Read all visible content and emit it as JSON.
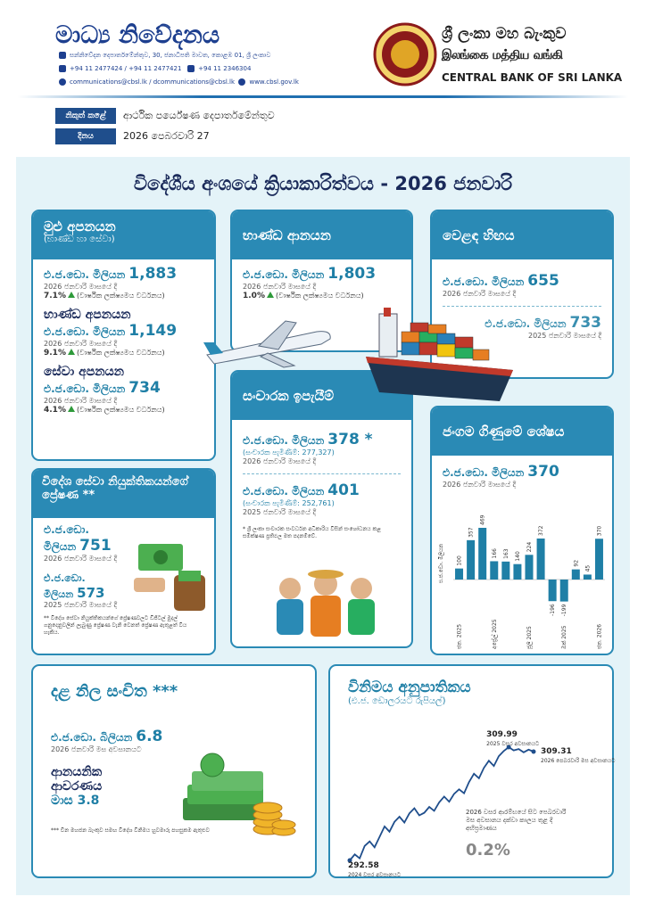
{
  "header": {
    "title": "මාධ්‍ය නිවේදනය",
    "address": "සන්නිවේදන දෙපාර්තමේන්තුව, 30, ජනාධිපති මාවත, කොළඹ 01, ශ්‍රී ලංකාව",
    "phone": "+94 11 2477424 / +94 11 2477421",
    "fax": "+94 11 2346304",
    "email": "communications@cbsl.lk / dcommunications@cbsl.lk",
    "web": "www.cbsl.gov.lk",
    "bank_name_si": "ශ්‍රී ලංකා මහ බැංකුව",
    "bank_name_ta": "இலங்கை மத்திய வங்கி",
    "bank_name_en": "CENTRAL BANK OF SRI LANKA"
  },
  "info": {
    "rows": [
      [
        "නිකුත් කළේ",
        "ආර්ථික පර්යේෂණ දෙපාර්තමේන්තුව"
      ],
      [
        "දිනය",
        "2026 පෙබරවාරි 27"
      ]
    ]
  },
  "title": "විදේශීය අංශයේ ක්‍රියාකාරිත්වය - 2026 ජනවාරි",
  "exports": {
    "heading": "මුළු අපනයන",
    "subheading": "(භාණ්ඩ හා සේවා)",
    "items": [
      {
        "unit": "එ.ජ.ඩො. මිලියන",
        "value": "1,883",
        "period": "2026 ජනවාරි මාසයේ දී",
        "growth": "7.1%",
        "growth_note": "(වාර්ෂික ලක්ෂ්‍යමය වර්ධනය)"
      },
      {
        "heading": "භාණ්ඩ අපනයන",
        "unit": "එ.ජ.ඩො. මිලියන",
        "value": "1,149",
        "period": "2026 ජනවාරි මාසයේ දී",
        "growth": "9.1%",
        "growth_note": "(වාර්ෂික ලක්ෂ්‍යමය වර්ධනය)"
      },
      {
        "heading": "සේවා අපනයන",
        "unit": "එ.ජ.ඩො. මිලියන",
        "value": "734",
        "period": "2026 ජනවාරි මාසයේ දී",
        "growth": "4.1%",
        "growth_note": "(වාර්ෂික ලක්ෂ්‍යමය වර්ධනය)"
      }
    ]
  },
  "imports": {
    "heading": "භාණ්ඩ ආනයන",
    "unit": "එ.ජ.ඩො. මිලියන",
    "value": "1,803",
    "period": "2026 ජනවාරි මාසයේ දී",
    "growth": "1.0%",
    "growth_note": "(වාර්ෂික ලක්ෂ්‍යමය වර්ධනය)"
  },
  "trade_deficit": {
    "heading": "වෙළඳ හිඟය",
    "items": [
      {
        "unit": "එ.ජ.ඩො. මිලියන",
        "value": "655",
        "period": "2026 ජනවාරි මාසයේ දී"
      },
      {
        "unit": "එ.ජ.ඩො. මිලියන",
        "value": "733",
        "period": "2025 ජනවාරි මාසයේ දී"
      }
    ]
  },
  "tourism": {
    "heading": "සංචාරක ඉපැයීම්",
    "items": [
      {
        "unit": "එ.ජ.ඩො. මිලියන",
        "value": "378 *",
        "arrivals": "(සංචාරක පැමිණීම්: 277,327)",
        "period": "2026 ජනවාරි මාසයේ දී"
      },
      {
        "unit": "එ.ජ.ඩො. මිලියන",
        "value": "401",
        "arrivals": "(සංචාරක පැමිණීම්: 252,761)",
        "period": "2025 ජනවාරි මාසයේ දී"
      }
    ],
    "footnote": "* ශ්‍රී ලංකා සංචාරක සංවර්ධන අධිකාරිය විසින් සංශෝධනය කළ සමීක්ෂණ ප්‍රතිඵල මත පදනම්වේ."
  },
  "remittances": {
    "heading": "විදේශ සේවා නියුක්තිකයන්ගේ ප්‍රේෂණ **",
    "items": [
      {
        "unit": "එ.ජ.ඩො. මිලියන",
        "value": "751",
        "period": "2026 ජනවාරි මාසයේ දී"
      },
      {
        "unit": "එ.ජ.ඩො. මිලියන",
        "value": "573",
        "period": "2025 ජනවාරි මාසයේ දී"
      }
    ],
    "footnote": "** විදේශ සේවා නියුක්තිකයන්ගේ ප්‍රේෂණවලට ඩිජිටල් මුදල් ගනුදෙනුවලින් ලැබුණු ප්‍රේෂණ වැනි වෙනත් ප්‍රේෂණ ඇතුළත් විය හැකිය."
  },
  "current_account": {
    "heading": "ජංගම ගිණුමේ ශේෂය",
    "unit": "එ.ජ.ඩො. මිලියන",
    "value": "370",
    "period": "2026 ජනවාරි මාසයේ දී",
    "chart": {
      "type": "bar",
      "y_label": "එ.ජ.ඩො. මිලියන",
      "color": "#1f7fa6",
      "categories": [
        "ජන. 2025",
        null,
        null,
        "අප්‍රේල් 2025",
        null,
        null,
        "ජූලි 2025",
        null,
        null,
        "ඔක් 2025",
        null,
        null,
        "ජන. 2026"
      ],
      "values": [
        100,
        357,
        469,
        166,
        163,
        140,
        224,
        372,
        -196,
        -199,
        92,
        45,
        370
      ]
    }
  },
  "reserves": {
    "heading": "දළ නිල සංචිත ***",
    "unit": "එ.ජ.ඩො. බිලියන",
    "value": "6.8",
    "period": "2026 ජනවාරි මස අවසානයට",
    "cover_heading": "ආනයනික ආවරණය",
    "cover_value": "මාස 3.8",
    "footnote": "*** චීන මහජන බැංකුව සමඟ විදේශ විනිමය හුවමාරු පහසුකම ඇතුළුව"
  },
  "exchange_rate": {
    "heading": "විනිමය අනුපාතිකය",
    "subheading": "(එ.ජ. ඩොලරයට රුපියල්)",
    "note": "2026 වසර ආරම්භයේ සිට පෙබරවාරි මස අවසානය දක්වා කාලය තුළ දී අභිප්‍රමාණය",
    "appreciation": "0.2%",
    "chart": {
      "type": "line",
      "color": "#1f4e8c",
      "values": [
        292.58,
        293.5,
        292.9,
        294.8,
        295.5,
        294.6,
        296.2,
        297.8,
        297.0,
        298.5,
        299.3,
        298.4,
        299.8,
        300.6,
        299.5,
        299.9,
        300.8,
        300.2,
        301.5,
        302.4,
        301.6,
        302.8,
        303.5,
        302.9,
        304.6,
        305.9,
        305.2,
        306.8,
        307.9,
        307.1,
        308.6,
        309.4,
        309.99,
        309.5,
        309.7,
        309.2,
        309.6,
        309.31
      ],
      "point_labels": [
        {
          "index": 0,
          "label": "2024 වසර අවසානයට"
        },
        {
          "index": 32,
          "label": "2025 වසර අවසානයට"
        },
        {
          "index": 37,
          "label": "2026 පෙබරවාරි මස අවසානයට"
        }
      ]
    }
  }
}
